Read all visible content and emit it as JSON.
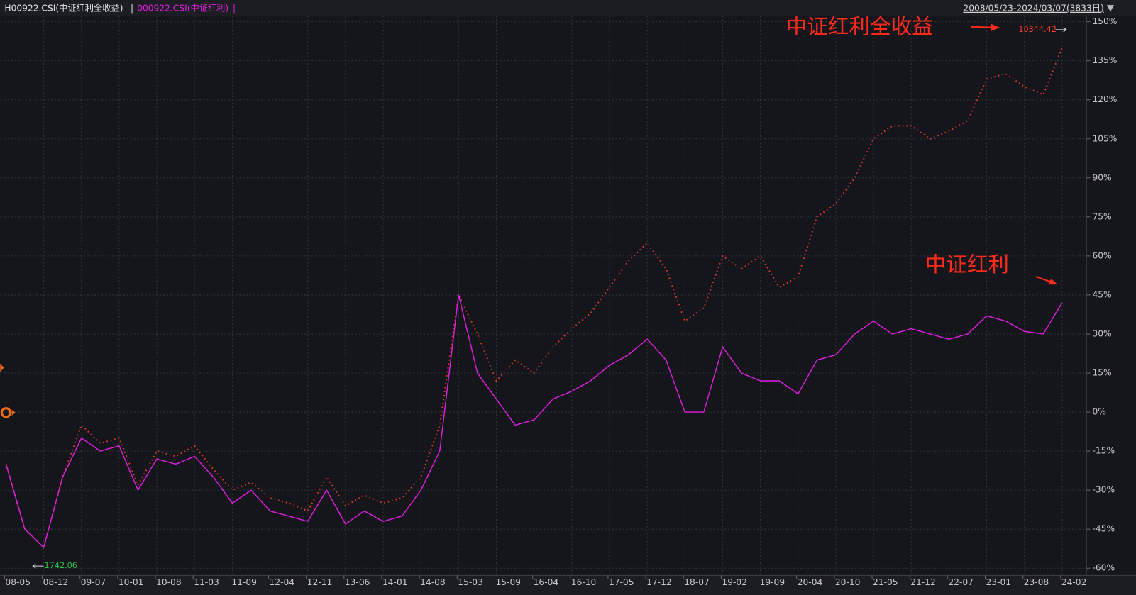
{
  "chart_data": {
    "type": "line",
    "date_range": "2008/05/23-2024/03/07(3833日)",
    "categories": [
      "08-05",
      null,
      "08-12",
      null,
      "09-07",
      null,
      "10-01",
      null,
      "10-08",
      null,
      "11-03",
      null,
      "11-09",
      null,
      "12-04",
      null,
      "12-11",
      null,
      "13-06",
      null,
      "14-01",
      null,
      "14-08",
      null,
      "15-03",
      null,
      "15-09",
      null,
      "16-04",
      null,
      "16-10",
      null,
      "17-05",
      null,
      "17-12",
      null,
      "18-07",
      null,
      "19-02",
      null,
      "19-09",
      null,
      "20-04",
      null,
      "20-10",
      null,
      "21-05",
      null,
      "21-12",
      null,
      "22-07",
      null,
      "23-01",
      null,
      "23-08",
      null,
      "24-02"
    ],
    "series": [
      {
        "name": "H00922.CSI(中证红利全收益)",
        "color": "#e43b2c",
        "values": [
          -20,
          -45,
          -52,
          -25,
          -5,
          -12,
          -10,
          -28,
          -15,
          -17,
          -13,
          -22,
          -30,
          -27,
          -33,
          -35,
          -38,
          -25,
          -36,
          -32,
          -35,
          -33,
          -25,
          -5,
          45,
          30,
          12,
          20,
          15,
          25,
          32,
          38,
          48,
          58,
          65,
          55,
          35,
          40,
          60,
          55,
          60,
          48,
          52,
          75,
          80,
          90,
          105,
          110,
          110,
          105,
          108,
          112,
          128,
          130,
          125,
          122,
          140
        ]
      },
      {
        "name": "000922.CSI(中证红利)",
        "color": "#e01fe0",
        "values": [
          -20,
          -45,
          -52,
          -25,
          -10,
          -15,
          -13,
          -30,
          -18,
          -20,
          -17,
          -25,
          -35,
          -30,
          -38,
          -40,
          -42,
          -30,
          -43,
          -38,
          -42,
          -40,
          -30,
          -15,
          45,
          15,
          5,
          -5,
          -3,
          5,
          8,
          12,
          18,
          22,
          28,
          20,
          0,
          0,
          25,
          15,
          12,
          12,
          7,
          20,
          22,
          30,
          35,
          30,
          32,
          30,
          28,
          30,
          37,
          35,
          31,
          30,
          42
        ]
      }
    ],
    "ylim": [
      -60,
      150
    ],
    "yticks": [
      {
        "value": 150,
        "label": "150%"
      },
      {
        "value": 135,
        "label": "135%"
      },
      {
        "value": 120,
        "label": "120%"
      },
      {
        "value": 105,
        "label": "105%"
      },
      {
        "value": 90,
        "label": "90%"
      },
      {
        "value": 75,
        "label": "75%"
      },
      {
        "value": 60,
        "label": "60%"
      },
      {
        "value": 45,
        "label": "45%"
      },
      {
        "value": 30,
        "label": "30%"
      },
      {
        "value": 15,
        "label": "15%"
      },
      {
        "value": 0,
        "label": "0%"
      },
      {
        "value": -15,
        "label": "-15%"
      },
      {
        "value": -30,
        "label": "-30%"
      },
      {
        "value": -45,
        "label": "-45%"
      },
      {
        "value": -60,
        "label": "-60%"
      }
    ],
    "grid": true,
    "annotations": [
      "中证红利全收益",
      "中证红利",
      "10344.42",
      "1742.06"
    ]
  }
}
